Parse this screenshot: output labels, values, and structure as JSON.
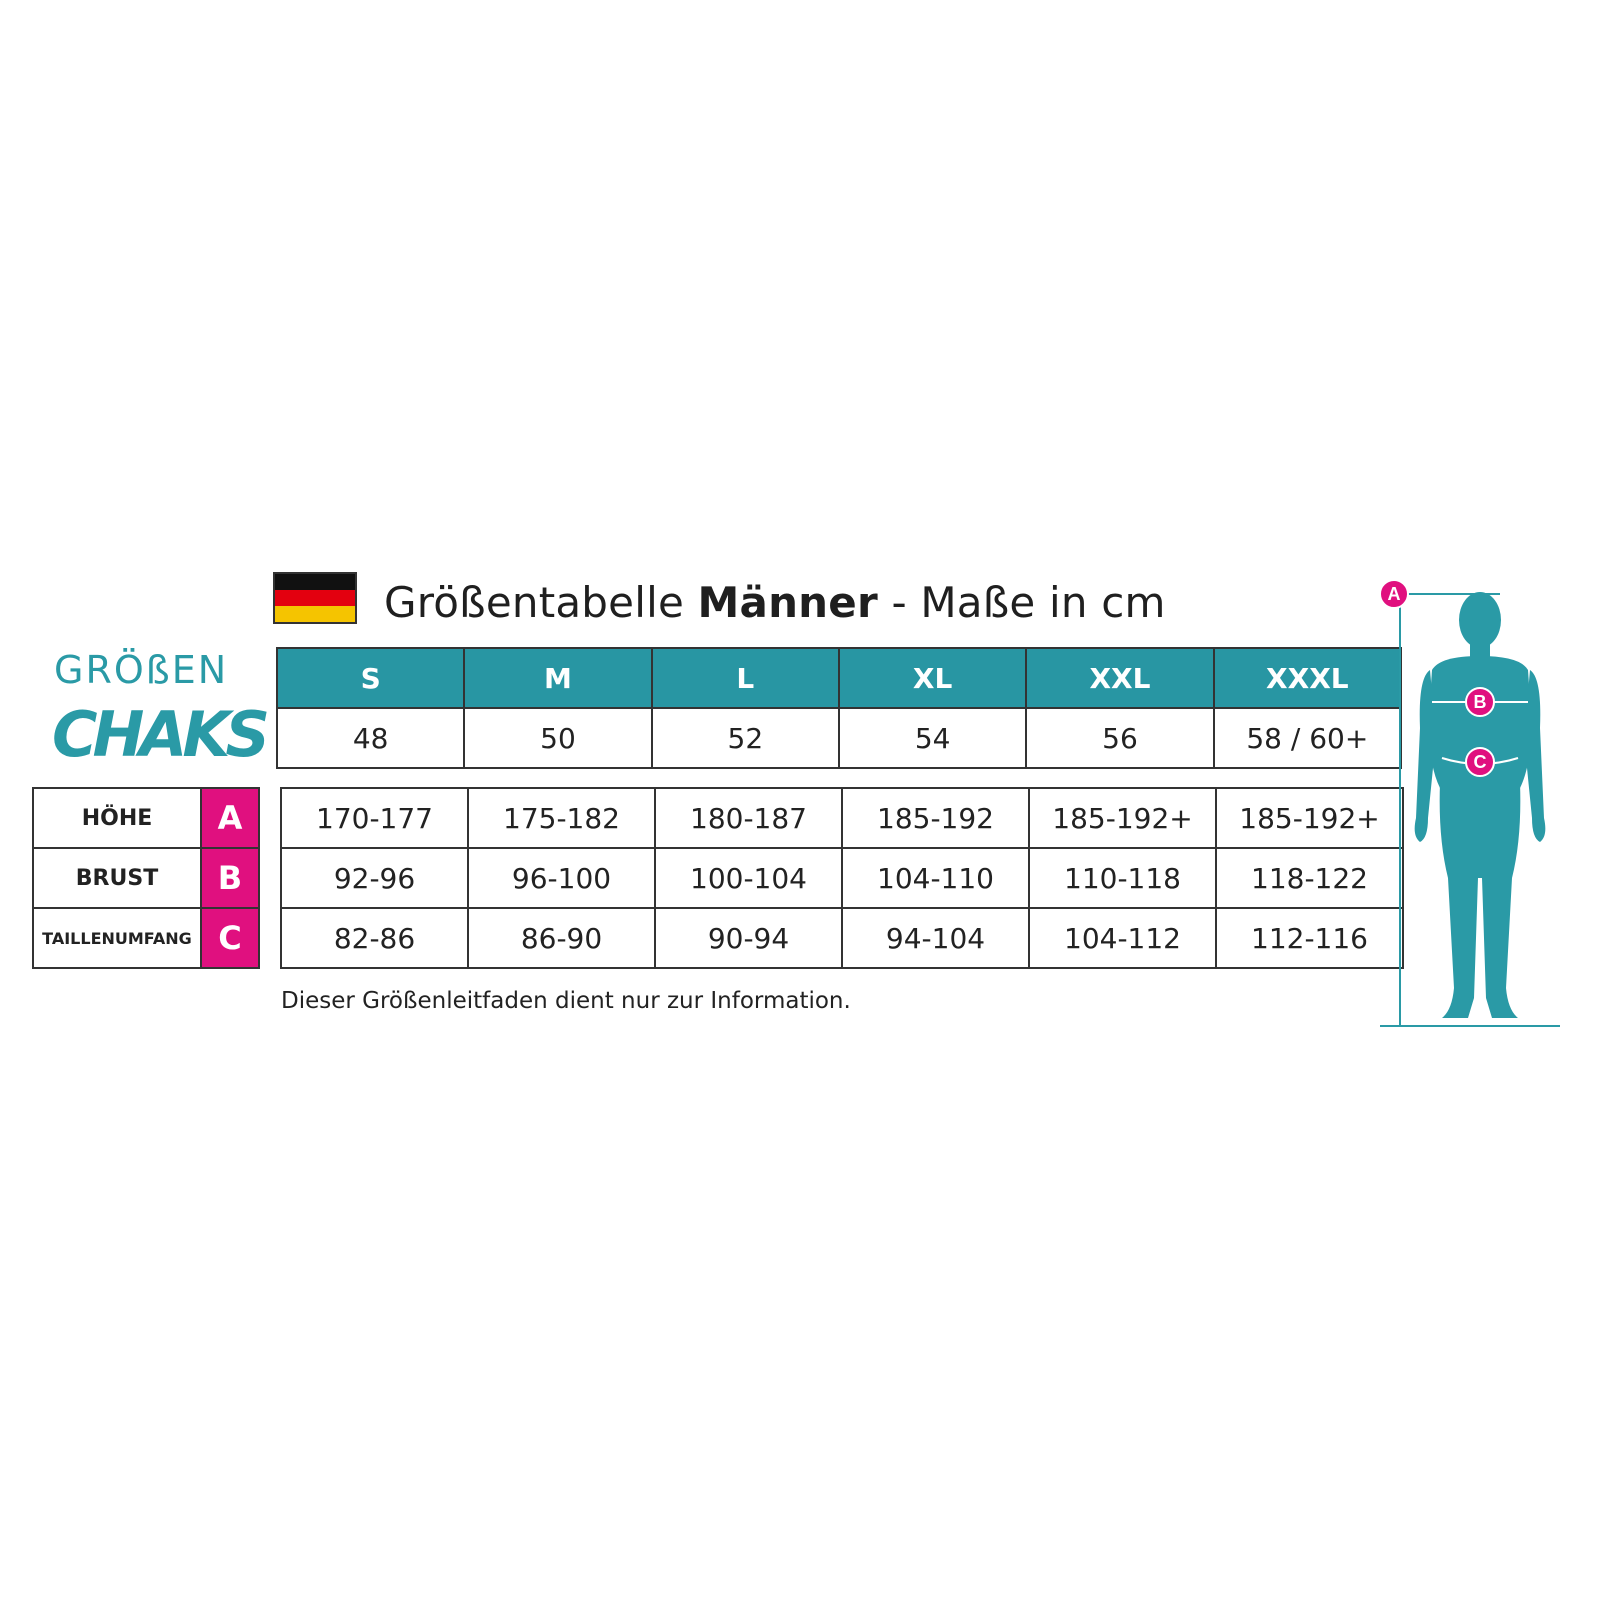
{
  "title": {
    "prefix": "Größentabelle ",
    "bold": "Männer",
    "suffix": " - Maße in cm"
  },
  "flag": {
    "colors": [
      "#111111",
      "#e3000f",
      "#f5c400"
    ]
  },
  "logo": {
    "top": "GRÖßEN",
    "main": "CHAKS"
  },
  "sizes": [
    "S",
    "M",
    "L",
    "XL",
    "XXL",
    "XXXL"
  ],
  "eu_sizes": [
    "48",
    "50",
    "52",
    "54",
    "56",
    "58 / 60+"
  ],
  "measures": [
    {
      "label": "HÖHE",
      "letter": "A",
      "values": [
        "170-177",
        "175-182",
        "180-187",
        "185-192",
        "185-192+",
        "185-192+"
      ]
    },
    {
      "label": "BRUST",
      "letter": "B",
      "values": [
        "92-96",
        "96-100",
        "100-104",
        "104-110",
        "110-118",
        "118-122"
      ]
    },
    {
      "label": "TAILLENUMFANG",
      "letter": "C",
      "values": [
        "82-86",
        "86-90",
        "90-94",
        "94-104",
        "104-112",
        "112-116"
      ]
    }
  ],
  "note": "Dieser Größenleitfaden dient nur zur Information.",
  "figure_markers": [
    "A",
    "B",
    "C"
  ],
  "colors": {
    "teal": "#2896a3",
    "magenta": "#e0107f",
    "figure": "#2a9aa6"
  }
}
